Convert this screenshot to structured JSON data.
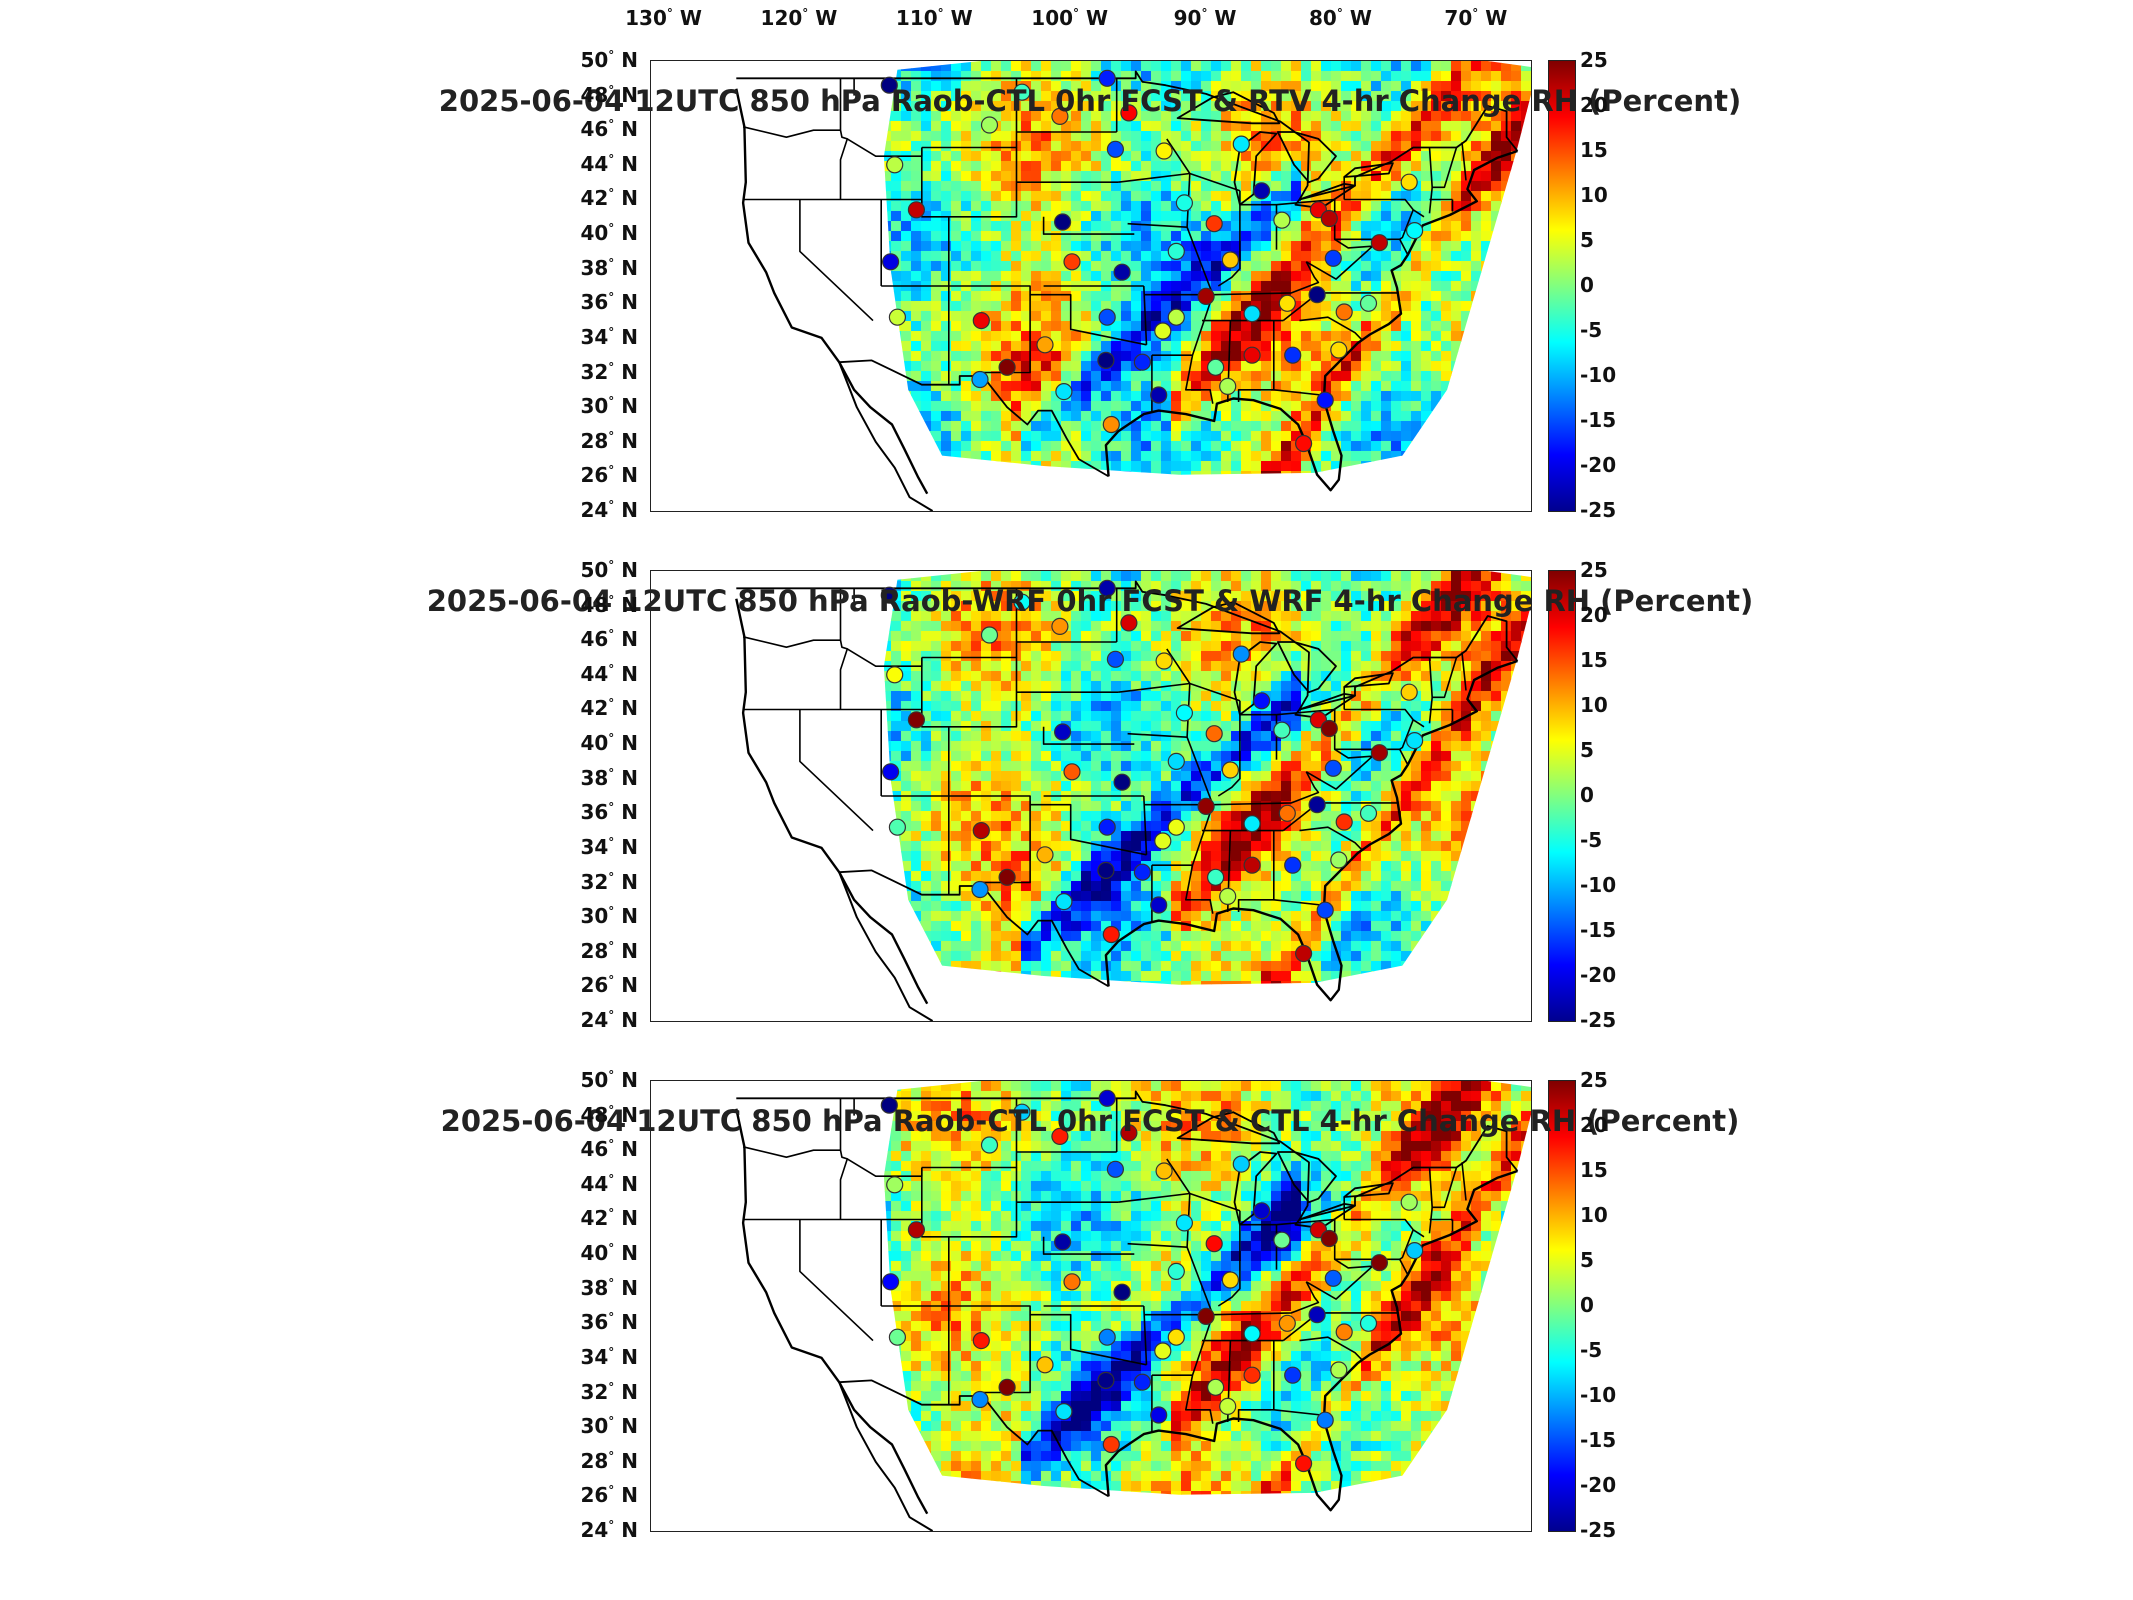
{
  "figure": {
    "lon_ticks": [
      "130",
      "120",
      "110",
      "100",
      "90",
      "80",
      "70"
    ],
    "lon_hemi": "W",
    "lat_ticks": [
      "50",
      "48",
      "46",
      "44",
      "42",
      "40",
      "38",
      "36",
      "34",
      "32",
      "30",
      "28",
      "26",
      "24"
    ],
    "lat_hemi": "N",
    "degree_symbol": "°",
    "colorbar": {
      "ticks": [
        "25",
        "20",
        "15",
        "10",
        "5",
        "0",
        "-5",
        "-10",
        "-15",
        "-20",
        "-25"
      ],
      "range": [
        -25,
        25
      ],
      "colormap": "jet",
      "colors": [
        "#00008f",
        "#0000ff",
        "#0080ff",
        "#00ffff",
        "#80ff80",
        "#ffff00",
        "#ff8000",
        "#ff0000",
        "#800000"
      ]
    },
    "map_extent": {
      "lon": [
        -131,
        -66
      ],
      "lat": [
        24,
        50
      ]
    },
    "panels": [
      {
        "title": "2025-06-04 12UTC 850 hPa Raob-CTL 0hr FCST & RTV 4-hr Change RH (Percent)"
      },
      {
        "title": "2025-06-04 12UTC 850 hPa Raob-WRF 0hr FCST & WRF 4-hr Change RH (Percent)"
      },
      {
        "title": "2025-06-04 12UTC 850 hPa Raob-CTL 0hr FCST & CTL 4-hr Change RH (Percent)"
      }
    ]
  }
}
